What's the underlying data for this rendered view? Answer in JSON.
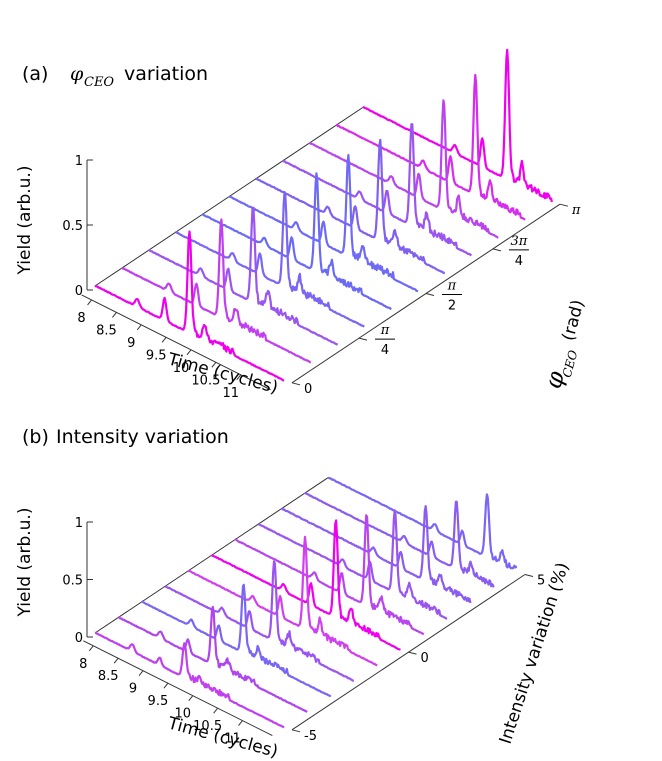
{
  "chart_data": [
    {
      "type": "line",
      "panel_label": "(a)",
      "title_symbol": "φ",
      "title_subscript": "CEO",
      "title_text": "variation",
      "xlabel": "Time (cycles)",
      "ylabel": "Yield (arb.u.)",
      "zlabel_symbol": "φ",
      "zlabel_subscript": "CEO",
      "zlabel_unit": "(rad)",
      "x_ticks": [
        "8",
        "8.5",
        "9",
        "9.5",
        "10",
        "10.5",
        "11"
      ],
      "y_ticks": [
        "0",
        "0.5",
        "1"
      ],
      "z_ticks": [
        "0",
        "π/4",
        "π/2",
        "3π/4",
        "π"
      ],
      "xlim": [
        7.8,
        11.6
      ],
      "ylim": [
        0,
        1
      ],
      "zlim": [
        0,
        3.1416
      ],
      "grid": false,
      "series_count": 11,
      "colors": [
        "#ee00ee",
        "#c040f0",
        "#9a55f0",
        "#7a66f5",
        "#6a6af5",
        "#6e6af5",
        "#8060f0",
        "#9a55f0",
        "#b845ee",
        "#d62ced",
        "#f000ee"
      ],
      "peak_time": [
        9.7,
        9.8,
        9.9,
        10.0,
        10.1,
        10.2,
        10.3,
        10.4,
        10.5,
        10.6,
        10.7
      ],
      "peak_height": [
        0.78,
        0.76,
        0.74,
        0.74,
        0.76,
        0.78,
        0.78,
        0.8,
        0.85,
        0.92,
        1.0
      ]
    },
    {
      "type": "line",
      "panel_label": "(b)",
      "title_text": "Intensity variation",
      "xlabel": "Time (cycles)",
      "ylabel": "Yield (arb.u.)",
      "zlabel": "Intensity variation (%)",
      "x_ticks": [
        "8",
        "8.5",
        "9",
        "9.5",
        "10",
        "10.5",
        "11"
      ],
      "y_ticks": [
        "0",
        "0.5",
        "1"
      ],
      "z_ticks": [
        "-5",
        "0",
        "5"
      ],
      "xlim": [
        7.8,
        11.6
      ],
      "ylim": [
        0,
        1
      ],
      "zlim": [
        -5,
        5
      ],
      "grid": false,
      "series_count": 11,
      "colors": [
        "#c040f0",
        "#b045ee",
        "#7a66f5",
        "#9a55f0",
        "#d040ee",
        "#f000ee",
        "#b845ee",
        "#9a55f0",
        "#8a5cf0",
        "#8a5cf0",
        "#7a66f5"
      ],
      "peak_time": [
        9.6,
        9.7,
        9.85,
        10.0,
        10.15,
        10.3,
        10.45,
        10.55,
        10.7,
        10.85,
        11.0
      ],
      "peak_height": [
        0.3,
        0.5,
        0.6,
        0.7,
        0.8,
        0.85,
        0.8,
        0.72,
        0.65,
        0.6,
        0.55
      ]
    }
  ]
}
